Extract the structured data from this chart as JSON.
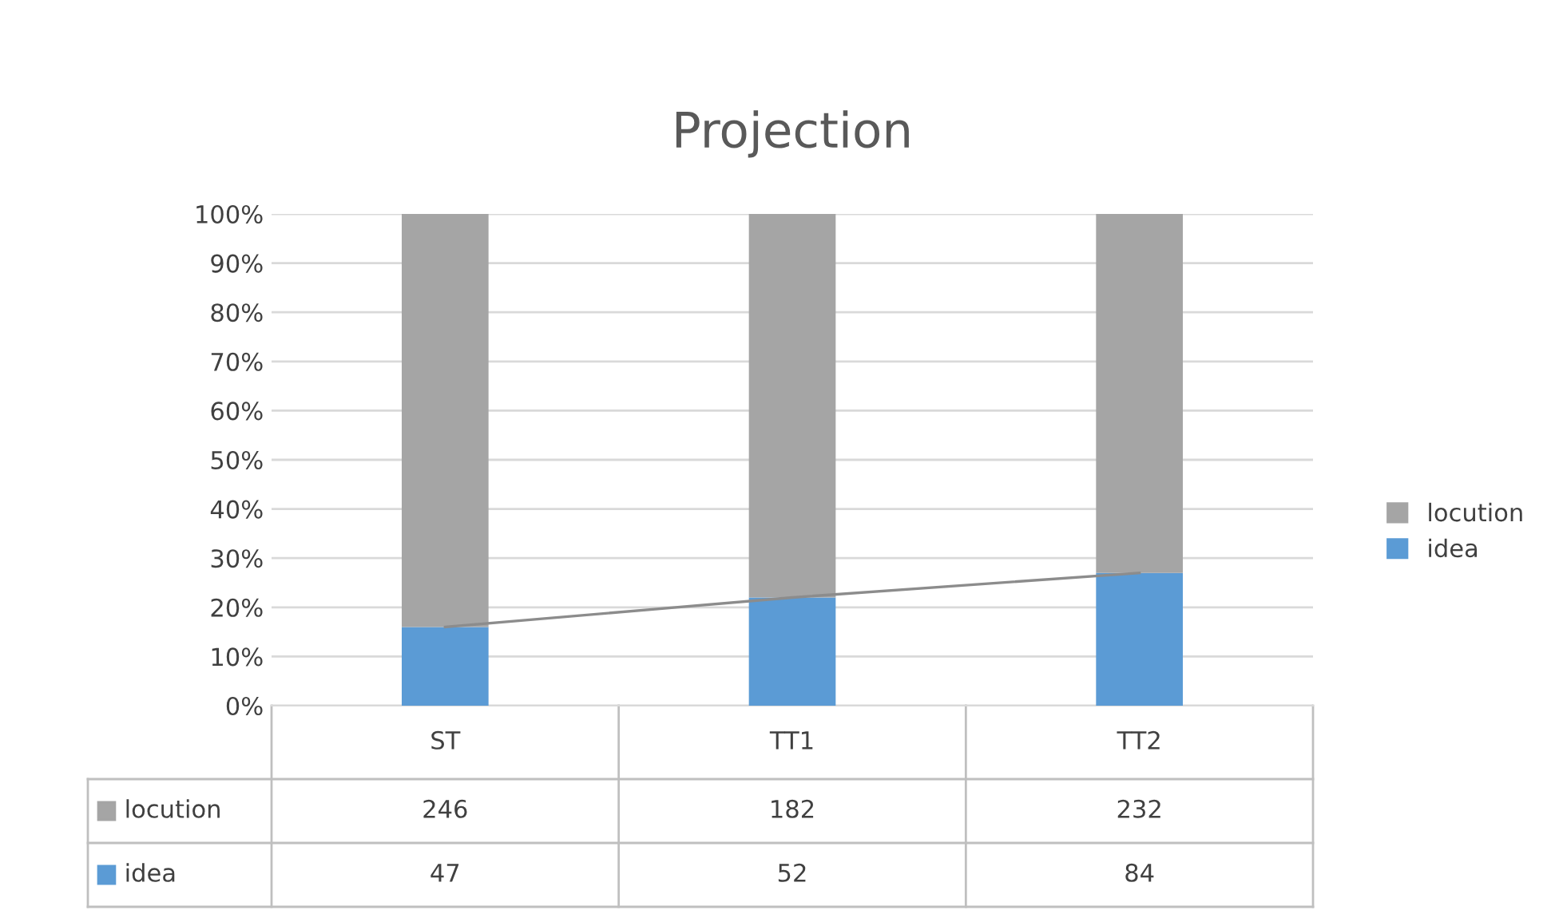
{
  "chart_data": {
    "type": "bar",
    "title": "Projection",
    "categories": [
      "ST",
      "TT1",
      "TT2"
    ],
    "stacked": true,
    "series": [
      {
        "name": "idea",
        "color": "#5b9bd5",
        "values": [
          16,
          22,
          27
        ]
      },
      {
        "name": "locution",
        "color": "#a5a5a5",
        "values": [
          84,
          78,
          73
        ]
      },
      {
        "type": "line",
        "color": "#8c8c8c",
        "values": [
          16,
          22,
          27
        ]
      }
    ],
    "annotations": [
      "246",
      "182",
      "232",
      "47",
      "52",
      "84"
    ],
    "ylim": [
      0,
      100
    ],
    "yticks": [
      {
        "value": 0,
        "label": "0%"
      },
      {
        "value": 10,
        "label": "10%"
      },
      {
        "value": 20,
        "label": "20%"
      },
      {
        "value": 30,
        "label": "30%"
      },
      {
        "value": 40,
        "label": "40%"
      },
      {
        "value": 50,
        "label": "50%"
      },
      {
        "value": 60,
        "label": "60%"
      },
      {
        "value": 70,
        "label": "70%"
      },
      {
        "value": 80,
        "label": "80%"
      },
      {
        "value": 90,
        "label": "90%"
      },
      {
        "value": 100,
        "label": "100%"
      }
    ],
    "grid": "y",
    "legend": "right"
  }
}
